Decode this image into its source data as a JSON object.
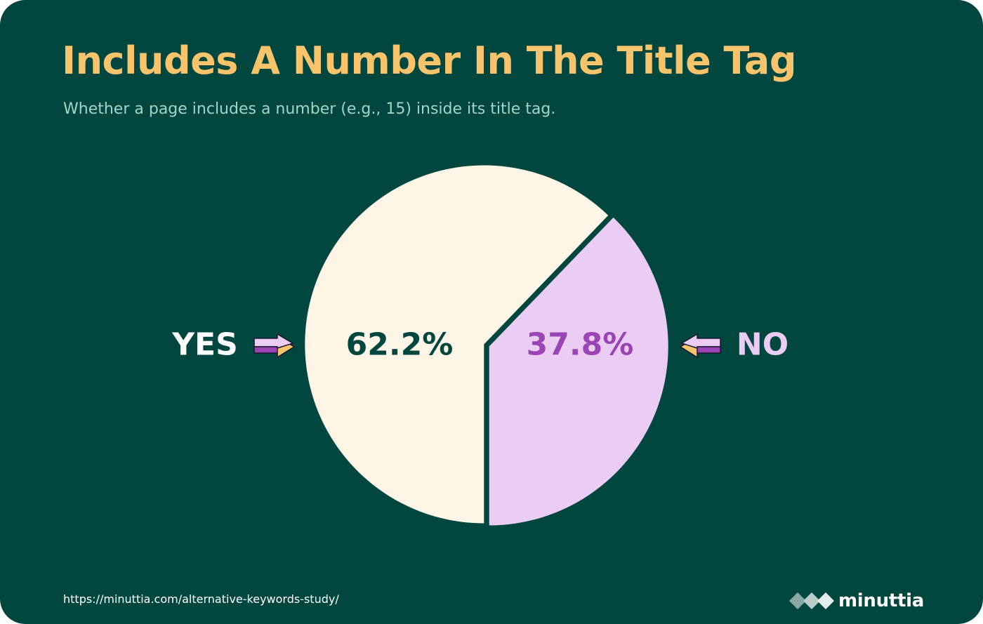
{
  "title": "Includes A Number In The Title Tag",
  "subtitle": "Whether a page includes a number (e.g., 15) inside its title tag.",
  "source_url": "https://minuttia.com/alternative-keywords-study/",
  "brand": {
    "name": "minuttia",
    "icon": "diamond-cluster-logo-icon"
  },
  "colors": {
    "background": "#01473f",
    "title": "#f7c46c",
    "subtitle": "#a5d3c8",
    "yes_slice": "#fdf5e6",
    "no_slice": "#ebcdf4",
    "yes_value": "#01473f",
    "no_value": "#9b45b4",
    "yes_label": "#ffffff",
    "no_label": "#ebcdf4",
    "arrow_purple": "#9b45b4",
    "arrow_light": "#ebcdf4",
    "arrow_gold": "#f7c46c"
  },
  "chart_data": {
    "type": "pie",
    "categories": [
      "YES",
      "NO"
    ],
    "values": [
      62.2,
      37.8
    ],
    "value_labels": [
      "62.2%",
      "37.8%"
    ],
    "legend": "none"
  }
}
